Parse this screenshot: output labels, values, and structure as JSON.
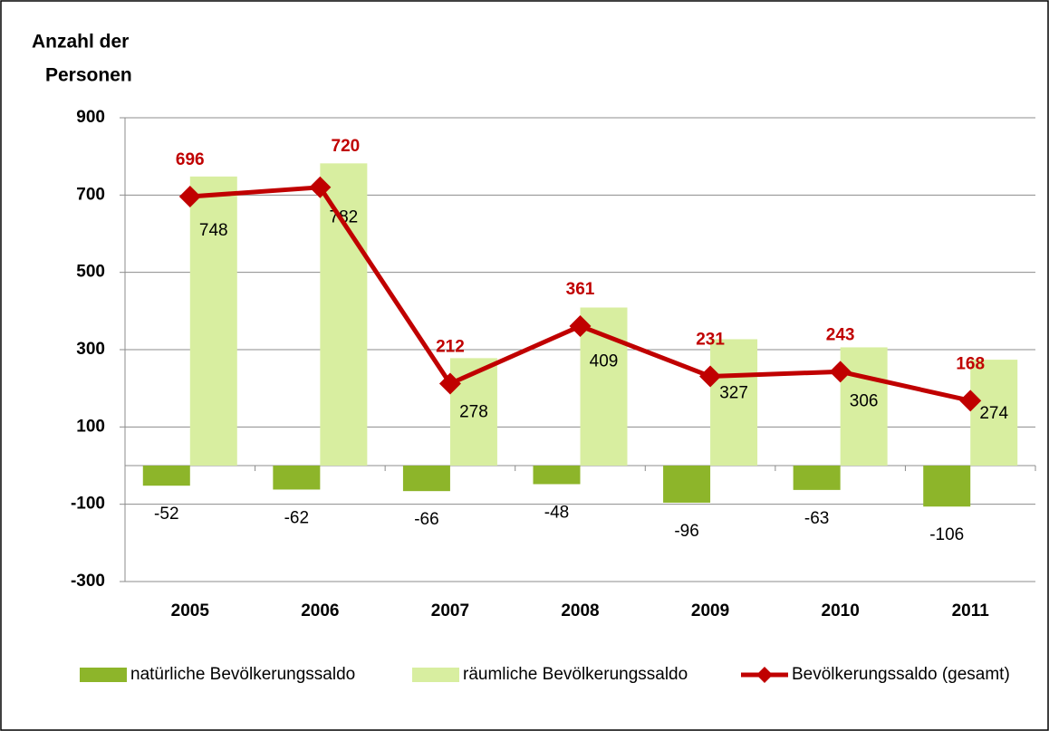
{
  "chart_data": {
    "type": "bar",
    "ylabel": [
      "Anzahl der",
      "Personen"
    ],
    "categories": [
      "2005",
      "2006",
      "2007",
      "2008",
      "2009",
      "2010",
      "2011"
    ],
    "series": [
      {
        "name": "natürliche Bevölkerungssaldo",
        "color": "#8db52a",
        "values": [
          -52,
          -62,
          -66,
          -48,
          -96,
          -63,
          -106
        ]
      },
      {
        "name": "räumliche Bevölkerungssaldo",
        "color": "#d8eea0",
        "values": [
          748,
          782,
          278,
          409,
          327,
          306,
          274
        ]
      },
      {
        "name": "Bevölkerungssaldo (gesamt)",
        "color": "#c00000",
        "type": "line",
        "values": [
          696,
          720,
          212,
          361,
          231,
          243,
          168
        ]
      }
    ],
    "ylim": [
      -300,
      900
    ],
    "yticks": [
      -300,
      -100,
      100,
      300,
      500,
      700,
      900
    ],
    "grid": true,
    "legend": "bottom"
  }
}
